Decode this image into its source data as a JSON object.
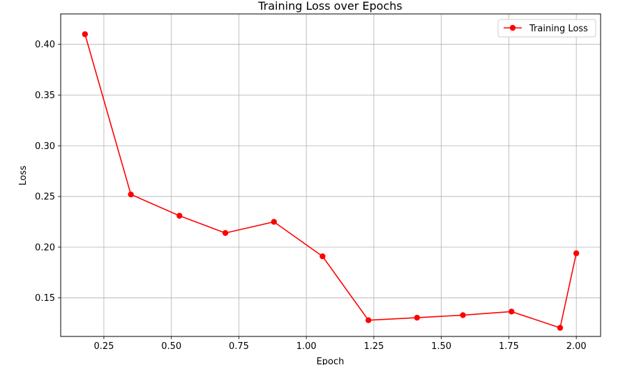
{
  "chart_data": {
    "type": "line",
    "title": "Training Loss over Epochs",
    "xlabel": "Epoch",
    "ylabel": "Loss",
    "xlim": [
      0.09,
      2.09
    ],
    "ylim": [
      0.112,
      0.43
    ],
    "x_ticks": [
      0.25,
      0.5,
      0.75,
      1.0,
      1.25,
      1.5,
      1.75,
      2.0
    ],
    "x_tick_labels": [
      "0.25",
      "0.50",
      "0.75",
      "1.00",
      "1.25",
      "1.50",
      "1.75",
      "2.00"
    ],
    "y_ticks": [
      0.15,
      0.2,
      0.25,
      0.3,
      0.35,
      0.4
    ],
    "y_tick_labels": [
      "0.15",
      "0.20",
      "0.25",
      "0.30",
      "0.35",
      "0.40"
    ],
    "grid": true,
    "legend_position": "top-right",
    "series": [
      {
        "name": "Training Loss",
        "color": "#ff0000",
        "marker": "circle",
        "x": [
          0.18,
          0.35,
          0.53,
          0.7,
          0.88,
          1.06,
          1.23,
          1.41,
          1.58,
          1.76,
          1.94,
          2.0
        ],
        "y": [
          0.41,
          0.252,
          0.231,
          0.214,
          0.225,
          0.191,
          0.128,
          0.1305,
          0.133,
          0.1365,
          0.1205,
          0.194
        ]
      }
    ]
  }
}
